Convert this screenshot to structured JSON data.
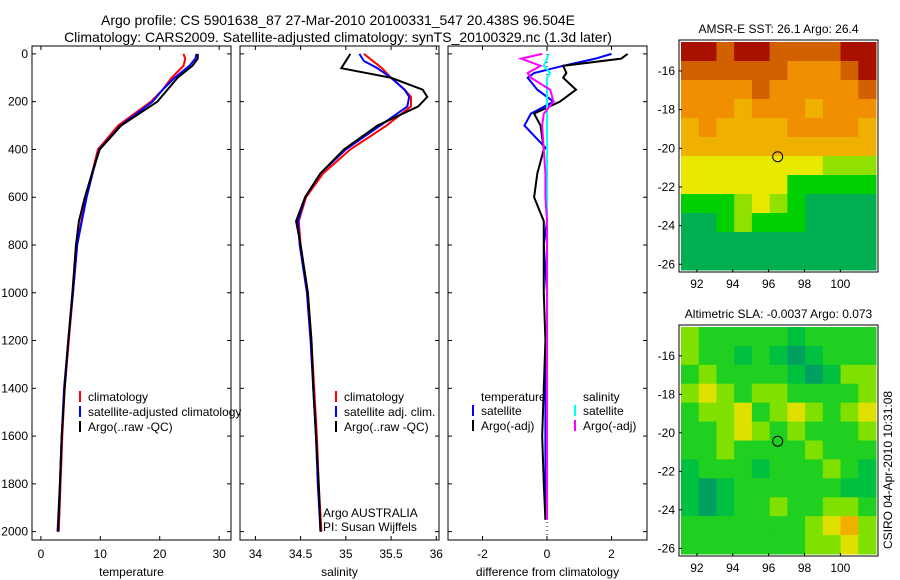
{
  "chart_data": {
    "title_line1": "Argo profile: CS 5901638_87 27-Mar-2010 20100331_547 20.438S 96.504E",
    "title_line2": "Climatology: CARS2009. Satellite-adjusted climatology: synTS_20100329.nc (1.3d later)",
    "side_label": "CSIRO 04-Apr-2010 10:31:08",
    "depth_ticks": [
      "0",
      "200",
      "400",
      "600",
      "800",
      "1000",
      "1200",
      "1400",
      "1600",
      "1800",
      "2000"
    ],
    "panels": [
      {
        "type": "line",
        "xlabel": "temperature",
        "xlim": [
          -1.5,
          32
        ],
        "ylim": [
          2035,
          -33
        ],
        "xticks": [
          "0",
          "10",
          "20",
          "30"
        ],
        "xtick_values": [
          0,
          10,
          20,
          30
        ],
        "depth": [
          0,
          20,
          50,
          100,
          150,
          200,
          300,
          400,
          500,
          600,
          700,
          800,
          1000,
          1200,
          1400,
          1600,
          1800,
          2000
        ],
        "series": [
          {
            "name": "climatology",
            "color": "#ff0000",
            "values": [
              24,
              24.3,
              24,
              22,
              20.5,
              18.5,
              13,
              9.6,
              8.6,
              7.6,
              6.8,
              6.1,
              5.4,
              4.7,
              4.0,
              3.6,
              3.3,
              3.0
            ]
          },
          {
            "name": "satellite-adjusted climatology",
            "color": "#0000ff",
            "values": [
              26.2,
              26.0,
              25,
              22.5,
              20.5,
              18.8,
              13.4,
              9.8,
              8.7,
              7.7,
              6.9,
              6.1,
              5.4,
              4.6,
              3.9,
              3.5,
              3.2,
              2.8
            ]
          },
          {
            "name": "Argo(..raw -QC)",
            "color": "#000000",
            "values": [
              26.4,
              26.4,
              25.5,
              23,
              21.3,
              19.6,
              13.5,
              9.9,
              8.6,
              7.4,
              6.4,
              5.9,
              5.3,
              4.6,
              4.0,
              3.5,
              3.2,
              2.9
            ]
          }
        ]
      },
      {
        "type": "line",
        "xlabel": "salinity",
        "xlim": [
          33.83,
          36.03
        ],
        "ylim": [
          2035,
          -33
        ],
        "xticks": [
          "34",
          "34.5",
          "35",
          "35.5",
          "36"
        ],
        "xtick_values": [
          34,
          34.5,
          35,
          35.5,
          36
        ],
        "depth": [
          0,
          30,
          60,
          100,
          150,
          180,
          220,
          300,
          400,
          500,
          600,
          700,
          800,
          1000,
          1200,
          1400,
          1600,
          1800,
          2000
        ],
        "series": [
          {
            "name": "climatology",
            "color": "#ff0000",
            "values": [
              35.2,
              35.3,
              35.4,
              35.5,
              35.65,
              35.72,
              35.72,
              35.45,
              35.05,
              34.75,
              34.56,
              34.48,
              34.5,
              34.58,
              34.62,
              34.65,
              34.68,
              34.7,
              34.73
            ]
          },
          {
            "name": "satellite adj. clim.",
            "color": "#0000ff",
            "values": [
              35.15,
              35.2,
              35.35,
              35.5,
              35.65,
              35.7,
              35.68,
              35.38,
              35.0,
              34.72,
              34.55,
              34.47,
              34.49,
              34.57,
              34.61,
              34.64,
              34.67,
              34.69,
              34.72
            ]
          },
          {
            "name": "Argo(..raw -QC)",
            "color": "#000000",
            "values": [
              35.05,
              35.0,
              34.95,
              35.5,
              35.85,
              35.9,
              35.8,
              35.35,
              34.98,
              34.72,
              34.55,
              34.45,
              34.5,
              34.58,
              34.62,
              34.64,
              34.67,
              34.7,
              34.72
            ]
          }
        ],
        "annotation": [
          "Argo AUSTRALIA",
          "PI: Susan Wijffels"
        ]
      },
      {
        "type": "line",
        "xlabel": "difference from climatology",
        "xlim": [
          -3.07,
          3.1
        ],
        "ylim": [
          2035,
          -33
        ],
        "xticks": [
          "-2",
          "0",
          "2"
        ],
        "xtick_values": [
          -2,
          0,
          2
        ],
        "depth": [
          0,
          20,
          50,
          80,
          100,
          150,
          200,
          250,
          300,
          400,
          500,
          600,
          700,
          800,
          1000,
          1200,
          1400,
          1600,
          1800,
          1950
        ],
        "legend_headers": [
          "temperature",
          "salinity"
        ],
        "series": [
          {
            "name": "satellite",
            "group": "temperature",
            "color": "#0000ff",
            "values": [
              2.0,
              1.5,
              0.5,
              -0.4,
              -0.6,
              -0.3,
              0.2,
              -0.5,
              -0.7,
              0,
              0,
              0,
              0,
              -0.1,
              0,
              0,
              -0.05,
              -0.05,
              -0.05,
              -0.05
            ]
          },
          {
            "name": "Argo(-adj)",
            "group": "temperature",
            "color": "#000000",
            "values": [
              2.5,
              2.3,
              0.5,
              0.6,
              0.5,
              0.9,
              0.4,
              -0.4,
              -0.2,
              -0.1,
              -0.3,
              -0.4,
              -0.1,
              -0.1,
              -0.1,
              -0.05,
              -0.1,
              -0.15,
              -0.1,
              -0.05
            ]
          },
          {
            "name": "satellite",
            "group": "salinity",
            "color": "#00ffff",
            "values": [
              0.05,
              0,
              -0.1,
              0.1,
              0,
              0,
              0,
              0,
              0,
              0,
              0,
              0,
              0,
              0,
              0,
              0,
              0,
              0,
              0,
              0
            ]
          },
          {
            "name": "Argo(-adj)",
            "group": "salinity",
            "color": "#ff00ff",
            "values": [
              -0.15,
              -0.8,
              -0.2,
              -0.6,
              -0.5,
              0.1,
              0.2,
              -0.1,
              -0.15,
              -0.1,
              -0.05,
              -0.05,
              0,
              0,
              0,
              0,
              0,
              0,
              0,
              0
            ]
          }
        ]
      },
      {
        "type": "heatmap",
        "title": "AMSR-E SST: 26.1 Argo: 26.4",
        "xlim": [
          91.0,
          102.1
        ],
        "ylim": [
          -26.4,
          -14.4
        ],
        "xticks": [
          "92",
          "94",
          "96",
          "98",
          "100"
        ],
        "xtick_values": [
          92,
          94,
          96,
          98,
          100
        ],
        "yticks": [
          "-16",
          "-18",
          "-20",
          "-22",
          "-24",
          "-26"
        ],
        "ytick_values": [
          -16,
          -18,
          -20,
          -22,
          -24,
          -26
        ],
        "marker": {
          "lon": 96.504,
          "lat": -20.438
        },
        "colorscale": [
          [
            24.5,
            "#00b050"
          ],
          [
            25,
            "#00d000"
          ],
          [
            25.5,
            "#90e000"
          ],
          [
            26,
            "#e8e800"
          ],
          [
            26.5,
            "#f0b000"
          ],
          [
            27,
            "#f09000"
          ],
          [
            27.5,
            "#d06000"
          ],
          [
            28,
            "#a81000"
          ]
        ],
        "grid": [
          [
            28,
            28,
            27.8,
            28,
            28,
            27.9,
            27.5,
            27.5,
            27.8,
            28,
            28
          ],
          [
            27.5,
            27.9,
            27.5,
            27.8,
            27.9,
            27.5,
            27.3,
            27.0,
            27.3,
            27.7,
            28
          ],
          [
            27.0,
            27.2,
            27.0,
            27.3,
            27.5,
            27.2,
            27.0,
            27.0,
            27.0,
            27.3,
            27.5
          ],
          [
            27.0,
            27.0,
            27.0,
            26.9,
            27.0,
            27.0,
            27.0,
            26.9,
            27.2,
            27.3,
            27.0
          ],
          [
            26.8,
            27.0,
            26.9,
            26.8,
            26.8,
            26.9,
            27.0,
            27.0,
            27.0,
            27.0,
            26.8
          ],
          [
            26.7,
            26.8,
            26.8,
            26.5,
            26.5,
            26.5,
            26.6,
            26.7,
            26.7,
            26.6,
            26.5
          ],
          [
            26.2,
            26.0,
            26.0,
            26.0,
            26.0,
            26.0,
            26.0,
            26.0,
            25.8,
            25.8,
            25.8
          ],
          [
            26.0,
            26.0,
            26.0,
            26.0,
            26.0,
            26.0,
            25.2,
            25.0,
            25.0,
            25.0,
            25.1
          ],
          [
            25.3,
            25.2,
            25.3,
            25.8,
            26.0,
            25.9,
            25.3,
            24.9,
            24.9,
            24.8,
            24.8
          ],
          [
            24.8,
            24.8,
            25.0,
            25.5,
            25.3,
            25.3,
            25.2,
            24.8,
            24.8,
            24.9,
            24.8
          ],
          [
            24.7,
            24.7,
            24.8,
            24.6,
            24.7,
            24.7,
            24.8,
            24.8,
            24.7,
            24.8,
            24.7
          ],
          [
            24.6,
            24.6,
            24.7,
            24.7,
            24.7,
            24.7,
            24.7,
            24.8,
            24.7,
            24.7,
            24.6
          ]
        ]
      },
      {
        "type": "heatmap",
        "title": "Altimetric SLA: -0.0037 Argo: 0.073",
        "xlim": [
          91.0,
          102.1
        ],
        "ylim": [
          -26.4,
          -14.4
        ],
        "xticks": [
          "92",
          "94",
          "96",
          "98",
          "100"
        ],
        "xtick_values": [
          92,
          94,
          96,
          98,
          100
        ],
        "yticks": [
          "-16",
          "-18",
          "-20",
          "-22",
          "-24",
          "-26"
        ],
        "ytick_values": [
          -16,
          -18,
          -20,
          -22,
          -24,
          -26
        ],
        "marker": {
          "lon": 96.504,
          "lat": -20.438
        },
        "colorscale": [
          [
            -0.1,
            "#00a060"
          ],
          [
            -0.05,
            "#00c040"
          ],
          [
            0,
            "#20d020"
          ],
          [
            0.05,
            "#80e000"
          ],
          [
            0.1,
            "#e0e000"
          ],
          [
            0.15,
            "#f0b000"
          ]
        ],
        "grid": [
          [
            0.05,
            0.02,
            0,
            0,
            0.02,
            0,
            -0.02,
            0,
            0.02,
            0,
            0
          ],
          [
            0.05,
            0.03,
            0,
            -0.02,
            0,
            -0.05,
            -0.08,
            -0.05,
            0,
            0,
            0
          ],
          [
            0.03,
            0.05,
            0.02,
            0,
            0.03,
            0,
            -0.05,
            -0.08,
            -0.03,
            0.05,
            0.05
          ],
          [
            0.06,
            0.1,
            0.05,
            0.03,
            0.05,
            0.05,
            0.03,
            0,
            0,
            0.03,
            0.08
          ],
          [
            0.04,
            0.06,
            0.08,
            0.1,
            0.02,
            0.05,
            0.1,
            0.05,
            0.02,
            0.05,
            0.1
          ],
          [
            0.02,
            0.03,
            0.06,
            0.1,
            0.05,
            0,
            0.05,
            0.03,
            0,
            0.02,
            0.06
          ],
          [
            0,
            0.02,
            0.05,
            0.03,
            0,
            0,
            0.02,
            0.05,
            0.03,
            0,
            0.02
          ],
          [
            -0.03,
            0,
            0,
            0,
            -0.02,
            0,
            0.02,
            0.03,
            0.05,
            0,
            -0.02
          ],
          [
            -0.05,
            -0.08,
            -0.05,
            0,
            0,
            0.02,
            0,
            0,
            0.02,
            -0.05,
            -0.03
          ],
          [
            -0.03,
            -0.06,
            -0.03,
            0,
            0.03,
            0.05,
            0.02,
            0,
            0.05,
            0.08,
            0.03
          ],
          [
            0,
            0,
            0,
            0.02,
            0.03,
            0,
            0,
            0.05,
            0.1,
            0.15,
            0.05
          ],
          [
            0,
            0,
            0.02,
            0,
            0,
            0,
            0.02,
            0.05,
            0.08,
            0.1,
            0.05
          ]
        ]
      }
    ]
  }
}
